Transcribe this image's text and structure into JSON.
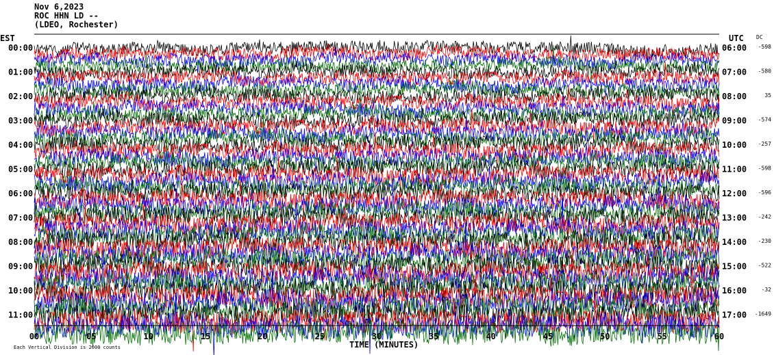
{
  "header": {
    "date": "Nov 6,2023",
    "station": "ROC HHN LD --",
    "network": "(LDEO, Rochester)"
  },
  "labels": {
    "left_tz": "EST",
    "right_tz": "UTC",
    "dc": "DC",
    "xlabel": "TIME (MINUTES)",
    "footer": "Each Vertical Division is 2000 counts"
  },
  "colors": {
    "trace_cycle": [
      "#000000",
      "#ff0000",
      "#0000ff",
      "#007000"
    ]
  },
  "chart_data": {
    "type": "line",
    "title": "Nov 6,2023 ROC HHN LD -- (LDEO, Rochester)",
    "xlabel": "TIME (MINUTES)",
    "xlim": [
      0,
      60
    ],
    "x_ticks": [
      "00",
      "05",
      "10",
      "15",
      "20",
      "25",
      "30",
      "35",
      "40",
      "45",
      "50",
      "55",
      "60"
    ],
    "rows": [
      {
        "est": "00:00",
        "utc": "06:00",
        "dc": "-598"
      },
      {
        "est": "01:00",
        "utc": "07:00",
        "dc": "-580"
      },
      {
        "est": "02:00",
        "utc": "08:00",
        "dc": "35"
      },
      {
        "est": "03:00",
        "utc": "09:00",
        "dc": "-574"
      },
      {
        "est": "04:00",
        "utc": "10:00",
        "dc": "-257"
      },
      {
        "est": "05:00",
        "utc": "11:00",
        "dc": "-598"
      },
      {
        "est": "06:00",
        "utc": "12:00",
        "dc": "-596"
      },
      {
        "est": "07:00",
        "utc": "13:00",
        "dc": "-242"
      },
      {
        "est": "08:00",
        "utc": "14:00",
        "dc": "-230"
      },
      {
        "est": "09:00",
        "utc": "15:00",
        "dc": "-522"
      },
      {
        "est": "10:00",
        "utc": "16:00",
        "dc": "-32"
      },
      {
        "est": "11:00",
        "utc": "17:00",
        "dc": "-1649"
      }
    ],
    "grid": false
  }
}
